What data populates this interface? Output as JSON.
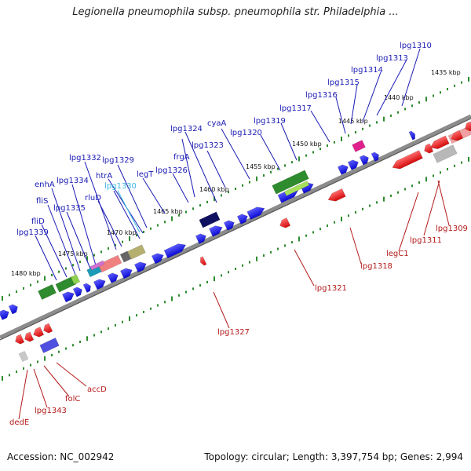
{
  "title": "Legionella pneumophila subsp. pneumophila str. Philadelphia ...",
  "footer": {
    "accession": "Accession: NC_002942",
    "summary": "Topology: circular; Length: 3,397,754 bp; Genes: 2,994"
  },
  "colors": {
    "forward_gene": "#1a1ae6",
    "reverse_gene": "#e61a1a",
    "upper_label": "#1a1ab4",
    "lower_label": "#b41a1a",
    "highlight_label": "#39b8e0",
    "tick": "#2e8b2e",
    "backbone": "#8c8c8c"
  },
  "ruler_labels": [
    "1435 kbp",
    "1440 kbp",
    "1445 kbp",
    "1450 kbp",
    "1455 kbp",
    "1460 kbp",
    "1465 kbp",
    "1470 kbp",
    "1475 kbp",
    "1480 kbp"
  ],
  "upper_labels": [
    "lpg1310",
    "lpg1313",
    "lpg1314",
    "lpg1315",
    "lpg1316",
    "lpg1317",
    "lpg1319",
    "lpg1320",
    "cyaA",
    "lpg1323",
    "lpg1324",
    "frgA",
    "lpg1326",
    "legT",
    "lpg1329",
    "htrA",
    "lpg1330",
    "rluD",
    "lpg1332",
    "lpg1334",
    "lpg1335",
    "enhA",
    "fliS",
    "fliD",
    "lpg1339"
  ],
  "lower_labels": [
    "lpg1309",
    "lpg1311",
    "legC1",
    "lpg1318",
    "lpg1321",
    "lpg1327",
    "accD",
    "folC",
    "lpg1343",
    "dedE"
  ]
}
